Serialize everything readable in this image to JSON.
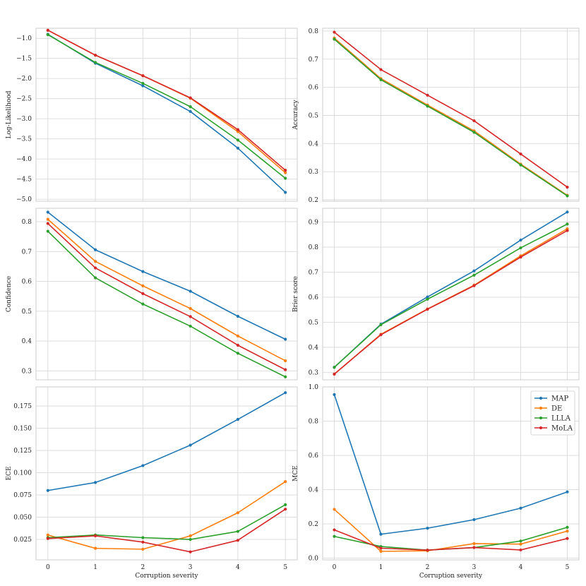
{
  "figure": {
    "description_free": true
  },
  "series_colors": {
    "MAP": "#1f77b4",
    "DE": "#ff7f0e",
    "LLLA": "#2ca02c",
    "MoLA": "#d62728"
  },
  "chart_data": [
    {
      "type": "line",
      "panel": "top-left",
      "title": "",
      "xlabel": "",
      "ylabel": "Log-Likelihood",
      "x": [
        0,
        1,
        2,
        3,
        4,
        5
      ],
      "xticks": [
        "0",
        "1",
        "2",
        "3",
        "4",
        "5"
      ],
      "ylim": [
        -5.05,
        -0.75
      ],
      "yticks": [
        -1.0,
        -1.5,
        -2.0,
        -2.5,
        -3.0,
        -3.5,
        -4.0,
        -4.5,
        -5.0
      ],
      "ytick_labels": [
        "−1.0",
        "−1.5",
        "−2.0",
        "−2.5",
        "−3.0",
        "−3.5",
        "−4.0",
        "−4.5",
        "−5.0"
      ],
      "series": [
        {
          "name": "MAP",
          "values": [
            -0.9,
            -1.62,
            -2.18,
            -2.82,
            -3.73,
            -4.83
          ]
        },
        {
          "name": "DE",
          "values": [
            -0.8,
            -1.42,
            -1.93,
            -2.49,
            -3.32,
            -4.34
          ]
        },
        {
          "name": "LLLA",
          "values": [
            -0.91,
            -1.6,
            -2.12,
            -2.7,
            -3.53,
            -4.48
          ]
        },
        {
          "name": "MoLA",
          "values": [
            -0.8,
            -1.42,
            -1.93,
            -2.48,
            -3.27,
            -4.28
          ]
        }
      ]
    },
    {
      "type": "line",
      "panel": "top-right",
      "title": "",
      "xlabel": "",
      "ylabel": "Accuracy",
      "x": [
        0,
        1,
        2,
        3,
        4,
        5
      ],
      "xticks": [
        "0",
        "1",
        "2",
        "3",
        "4",
        "5"
      ],
      "ylim": [
        0.195,
        0.81
      ],
      "yticks": [
        0.2,
        0.3,
        0.4,
        0.5,
        0.6,
        0.7,
        0.8
      ],
      "ytick_labels": [
        "0.2",
        "0.3",
        "0.4",
        "0.5",
        "0.6",
        "0.7",
        "0.8"
      ],
      "series": [
        {
          "name": "MAP",
          "values": [
            0.775,
            0.63,
            0.536,
            0.443,
            0.326,
            0.215
          ]
        },
        {
          "name": "DE",
          "values": [
            0.775,
            0.631,
            0.537,
            0.445,
            0.327,
            0.216
          ]
        },
        {
          "name": "LLLA",
          "values": [
            0.771,
            0.627,
            0.533,
            0.44,
            0.324,
            0.214
          ]
        },
        {
          "name": "MoLA",
          "values": [
            0.796,
            0.663,
            0.572,
            0.481,
            0.363,
            0.245
          ]
        }
      ]
    },
    {
      "type": "line",
      "panel": "middle-left",
      "title": "",
      "xlabel": "",
      "ylabel": "Confidence",
      "x": [
        0,
        1,
        2,
        3,
        4,
        5
      ],
      "xticks": [
        "0",
        "1",
        "2",
        "3",
        "4",
        "5"
      ],
      "ylim": [
        0.27,
        0.845
      ],
      "yticks": [
        0.3,
        0.4,
        0.5,
        0.6,
        0.7,
        0.8
      ],
      "ytick_labels": [
        "0.3",
        "0.4",
        "0.5",
        "0.6",
        "0.7",
        "0.8"
      ],
      "series": [
        {
          "name": "MAP",
          "values": [
            0.832,
            0.706,
            0.633,
            0.567,
            0.483,
            0.406
          ]
        },
        {
          "name": "DE",
          "values": [
            0.808,
            0.667,
            0.585,
            0.509,
            0.417,
            0.334
          ]
        },
        {
          "name": "LLLA",
          "values": [
            0.768,
            0.612,
            0.524,
            0.45,
            0.359,
            0.28
          ]
        },
        {
          "name": "MoLA",
          "values": [
            0.794,
            0.645,
            0.559,
            0.482,
            0.386,
            0.304
          ]
        }
      ]
    },
    {
      "type": "line",
      "panel": "middle-right",
      "title": "",
      "xlabel": "",
      "ylabel": "Brier score",
      "x": [
        0,
        1,
        2,
        3,
        4,
        5
      ],
      "xticks": [
        "0",
        "1",
        "2",
        "3",
        "4",
        "5"
      ],
      "ylim": [
        0.27,
        0.955
      ],
      "yticks": [
        0.3,
        0.4,
        0.5,
        0.6,
        0.7,
        0.8,
        0.9
      ],
      "ytick_labels": [
        "0.3",
        "0.4",
        "0.5",
        "0.6",
        "0.7",
        "0.8",
        "0.9"
      ],
      "series": [
        {
          "name": "MAP",
          "values": [
            0.32,
            0.492,
            0.601,
            0.705,
            0.828,
            0.94
          ]
        },
        {
          "name": "DE",
          "values": [
            0.293,
            0.452,
            0.553,
            0.648,
            0.765,
            0.873
          ]
        },
        {
          "name": "LLLA",
          "values": [
            0.32,
            0.49,
            0.592,
            0.688,
            0.797,
            0.892
          ]
        },
        {
          "name": "MoLA",
          "values": [
            0.293,
            0.45,
            0.552,
            0.646,
            0.76,
            0.866
          ]
        }
      ]
    },
    {
      "type": "line",
      "panel": "bottom-left",
      "title": "",
      "xlabel": "Corruption severity",
      "ylabel": "ECE",
      "x": [
        0,
        1,
        2,
        3,
        4,
        5
      ],
      "xticks": [
        "0",
        "1",
        "2",
        "3",
        "4",
        "5"
      ],
      "ylim": [
        0.002,
        0.1965
      ],
      "yticks": [
        0.025,
        0.05,
        0.075,
        0.1,
        0.125,
        0.15,
        0.175
      ],
      "ytick_labels": [
        "0.025",
        "0.050",
        "0.075",
        "0.100",
        "0.125",
        "0.150",
        "0.175"
      ],
      "series": [
        {
          "name": "MAP",
          "values": [
            0.08,
            0.089,
            0.108,
            0.131,
            0.16,
            0.19
          ]
        },
        {
          "name": "DE",
          "values": [
            0.03,
            0.015,
            0.014,
            0.029,
            0.055,
            0.09
          ]
        },
        {
          "name": "LLLA",
          "values": [
            0.027,
            0.03,
            0.027,
            0.025,
            0.034,
            0.064
          ]
        },
        {
          "name": "MoLA",
          "values": [
            0.026,
            0.029,
            0.022,
            0.011,
            0.024,
            0.059
          ]
        }
      ]
    },
    {
      "type": "line",
      "panel": "bottom-right",
      "title": "",
      "xlabel": "Corruption severity",
      "ylabel": "MCE",
      "x": [
        0,
        1,
        2,
        3,
        4,
        5
      ],
      "xticks": [
        "0",
        "1",
        "2",
        "3",
        "4",
        "5"
      ],
      "ylim": [
        -0.01,
        1.0
      ],
      "yticks": [
        0.0,
        0.2,
        0.4,
        0.6,
        0.8,
        1.0
      ],
      "ytick_labels": [
        "0.0",
        "0.2",
        "0.4",
        "0.6",
        "0.8",
        "1.0"
      ],
      "legend": {
        "placement": "top-right",
        "entries": [
          "MAP",
          "DE",
          "LLLA",
          "MoLA"
        ]
      },
      "series": [
        {
          "name": "MAP",
          "values": [
            0.955,
            0.14,
            0.175,
            0.225,
            0.292,
            0.387
          ]
        },
        {
          "name": "DE",
          "values": [
            0.285,
            0.04,
            0.043,
            0.085,
            0.082,
            0.158
          ]
        },
        {
          "name": "LLLA",
          "values": [
            0.127,
            0.068,
            0.047,
            0.062,
            0.1,
            0.18
          ]
        },
        {
          "name": "MoLA",
          "values": [
            0.165,
            0.058,
            0.047,
            0.062,
            0.048,
            0.115
          ]
        }
      ]
    }
  ]
}
